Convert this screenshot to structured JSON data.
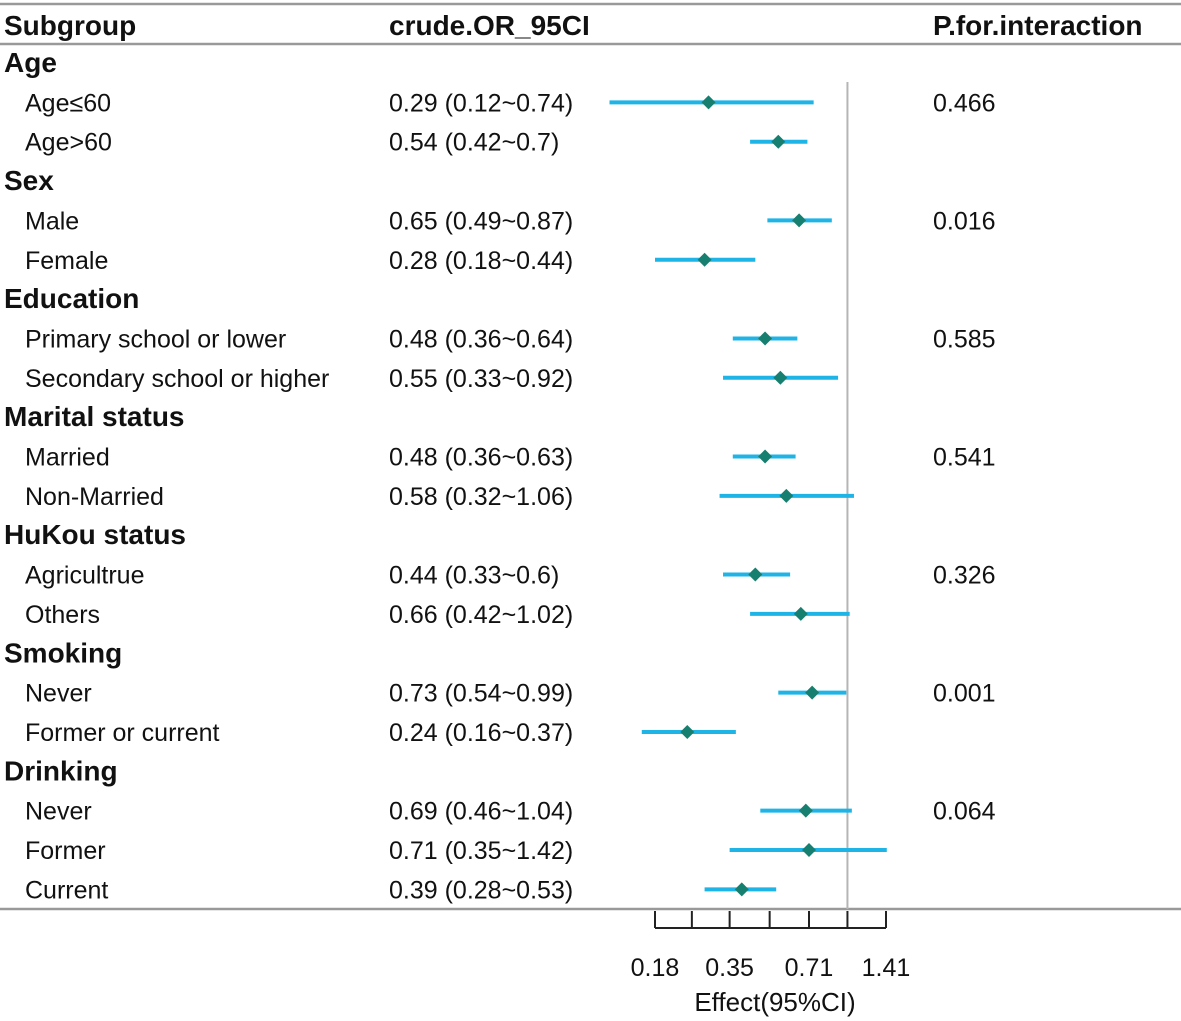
{
  "headers": {
    "subgroup": "Subgroup",
    "or_ci": "crude.OR_95CI",
    "p_interaction": "P.for.interaction"
  },
  "colors": {
    "ci_line": "#1fb4e6",
    "point": "#177f6f",
    "ref_line": "#b5b5b5",
    "rule": "#999999",
    "axis": "#222222"
  },
  "chart_data": {
    "type": "forest",
    "xlabel": "Effect(95%CI)",
    "x_scale": "log2",
    "xlim": [
      0.18,
      1.41
    ],
    "x_ticks": [
      0.18,
      0.25,
      0.35,
      0.5,
      0.71,
      1.0,
      1.41
    ],
    "x_tick_labels": [
      {
        "value": 0.18,
        "label": "0.18"
      },
      {
        "value": 0.35,
        "label": "0.35"
      },
      {
        "value": 0.71,
        "label": "0.71"
      },
      {
        "value": 1.41,
        "label": "1.41"
      }
    ],
    "reference_value": 1,
    "rows": [
      {
        "type": "group",
        "label": "Age"
      },
      {
        "type": "item",
        "label": "Age≤60",
        "or_ci": "0.29 (0.12~0.74)",
        "p": "0.466",
        "est": 0.29,
        "lo": 0.12,
        "hi": 0.74
      },
      {
        "type": "item",
        "label": "Age>60",
        "or_ci": "0.54 (0.42~0.7)",
        "p": "",
        "est": 0.54,
        "lo": 0.42,
        "hi": 0.7
      },
      {
        "type": "group",
        "label": "Sex"
      },
      {
        "type": "item",
        "label": "Male",
        "or_ci": "0.65 (0.49~0.87)",
        "p": "0.016",
        "est": 0.65,
        "lo": 0.49,
        "hi": 0.87
      },
      {
        "type": "item",
        "label": "Female",
        "or_ci": "0.28 (0.18~0.44)",
        "p": "",
        "est": 0.28,
        "lo": 0.18,
        "hi": 0.44
      },
      {
        "type": "group",
        "label": "Education"
      },
      {
        "type": "item",
        "label": "Primary school or lower",
        "or_ci": "0.48 (0.36~0.64)",
        "p": "0.585",
        "est": 0.48,
        "lo": 0.36,
        "hi": 0.64
      },
      {
        "type": "item",
        "label": "Secondary school or higher",
        "or_ci": "0.55 (0.33~0.92)",
        "p": "",
        "est": 0.55,
        "lo": 0.33,
        "hi": 0.92
      },
      {
        "type": "group",
        "label": "Marital status"
      },
      {
        "type": "item",
        "label": "Married",
        "or_ci": "0.48 (0.36~0.63)",
        "p": "0.541",
        "est": 0.48,
        "lo": 0.36,
        "hi": 0.63
      },
      {
        "type": "item",
        "label": "Non-Married",
        "or_ci": "0.58 (0.32~1.06)",
        "p": "",
        "est": 0.58,
        "lo": 0.32,
        "hi": 1.06
      },
      {
        "type": "group",
        "label": "HuKou status"
      },
      {
        "type": "item",
        "label": "Agricultrue",
        "or_ci": "0.44 (0.33~0.6)",
        "p": "0.326",
        "est": 0.44,
        "lo": 0.33,
        "hi": 0.6
      },
      {
        "type": "item",
        "label": "Others",
        "or_ci": "0.66 (0.42~1.02)",
        "p": "",
        "est": 0.66,
        "lo": 0.42,
        "hi": 1.02
      },
      {
        "type": "group",
        "label": "Smoking"
      },
      {
        "type": "item",
        "label": "Never",
        "or_ci": "0.73 (0.54~0.99)",
        "p": "0.001",
        "est": 0.73,
        "lo": 0.54,
        "hi": 0.99
      },
      {
        "type": "item",
        "label": "Former or current",
        "or_ci": "0.24 (0.16~0.37)",
        "p": "",
        "est": 0.24,
        "lo": 0.16,
        "hi": 0.37
      },
      {
        "type": "group",
        "label": "Drinking"
      },
      {
        "type": "item",
        "label": "Never",
        "or_ci": "0.69 (0.46~1.04)",
        "p": "0.064",
        "est": 0.69,
        "lo": 0.46,
        "hi": 1.04
      },
      {
        "type": "item",
        "label": "Former",
        "or_ci": "0.71 (0.35~1.42)",
        "p": "",
        "est": 0.71,
        "lo": 0.35,
        "hi": 1.42
      },
      {
        "type": "item",
        "label": "Current",
        "or_ci": "0.39 (0.28~0.53)",
        "p": "",
        "est": 0.39,
        "lo": 0.28,
        "hi": 0.53
      }
    ]
  }
}
